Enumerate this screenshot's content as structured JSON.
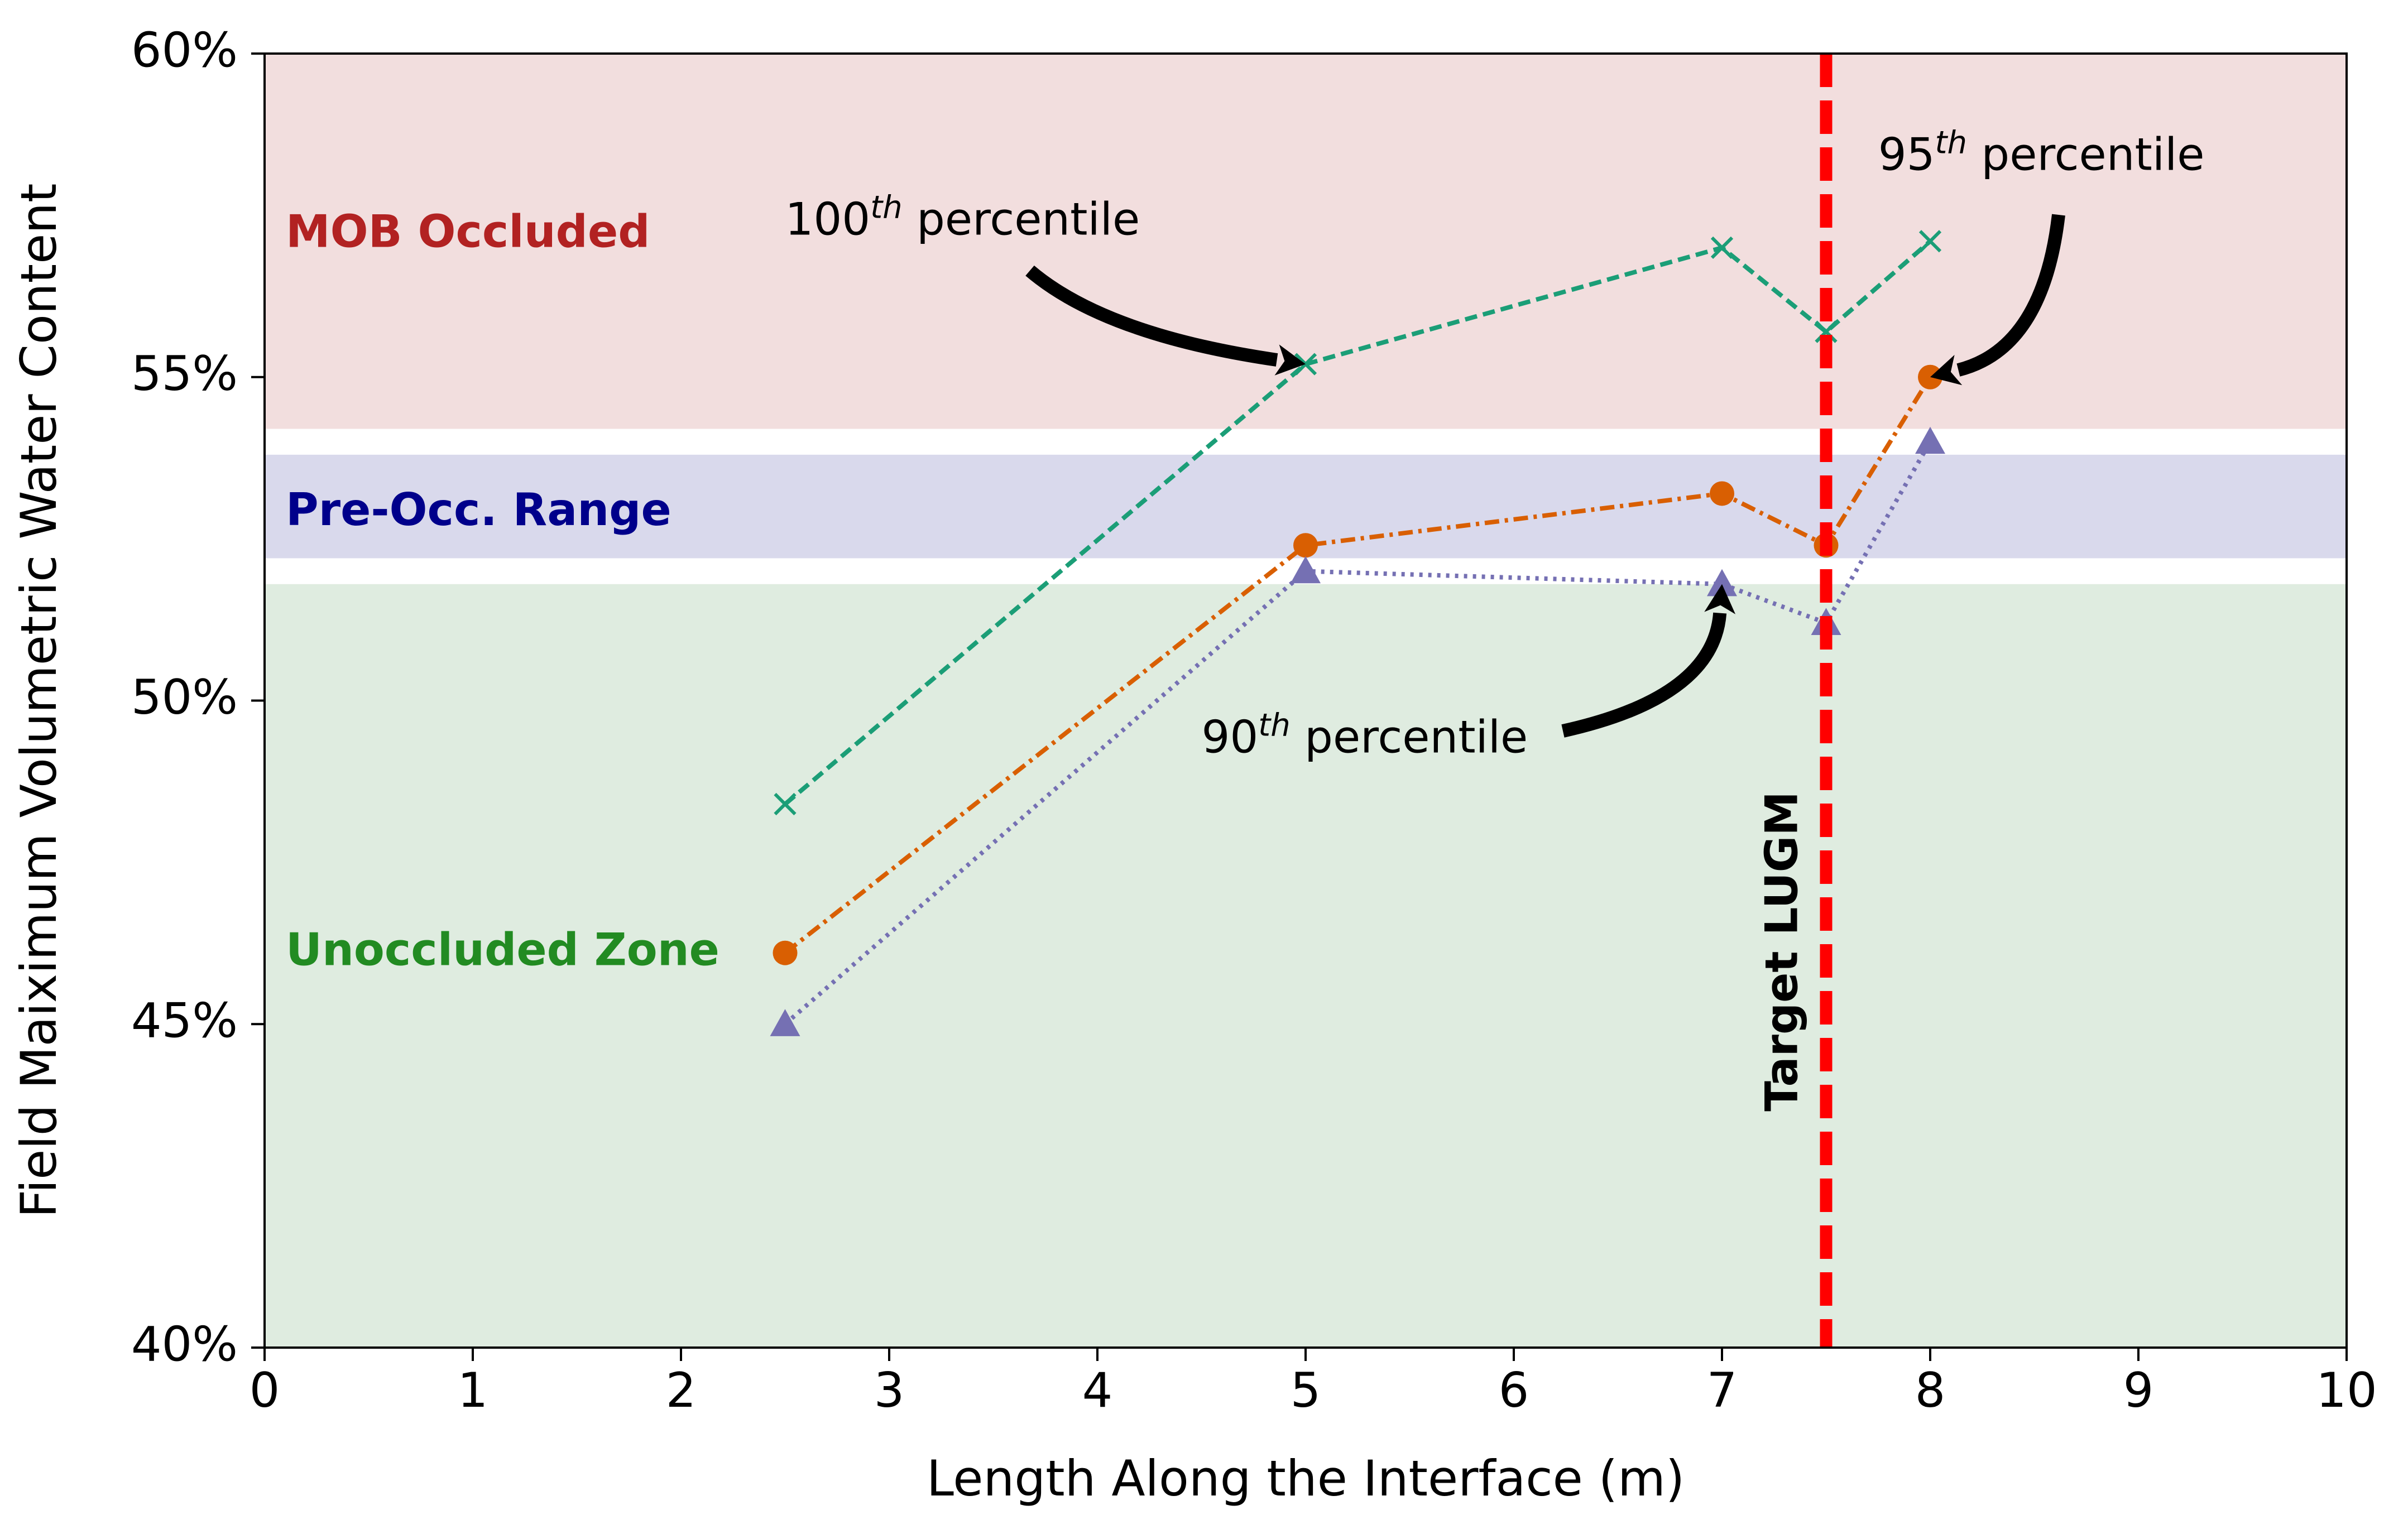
{
  "chart_data": {
    "type": "line",
    "xlabel": "Length Along the Interface (m)",
    "ylabel": "Field Maiximum Volumetric Water Content",
    "xlim": [
      0,
      10
    ],
    "ylim": [
      0.4,
      0.6
    ],
    "x_ticks": [
      0,
      1,
      2,
      3,
      4,
      5,
      6,
      7,
      8,
      9,
      10
    ],
    "x_tick_labels": [
      "0",
      "1",
      "2",
      "3",
      "4",
      "5",
      "6",
      "7",
      "8",
      "9",
      "10"
    ],
    "y_ticks": [
      0.4,
      0.45,
      0.5,
      0.55,
      0.6
    ],
    "y_tick_labels": [
      "40%",
      "45%",
      "50%",
      "55%",
      "60%"
    ],
    "grid": false,
    "legend": "none",
    "x": [
      2.5,
      5,
      7,
      7.5,
      8
    ],
    "series": [
      {
        "values": [
          0.484,
          0.552,
          0.57,
          0.557,
          0.571
        ],
        "color": "#1b9e77",
        "marker": "x",
        "linestyle": "dashed"
      },
      {
        "values": [
          0.461,
          0.524,
          0.532,
          0.524,
          0.55
        ],
        "color": "#d95f02",
        "marker": "circle",
        "linestyle": "dashdot"
      },
      {
        "values": [
          0.45,
          0.52,
          0.518,
          0.512,
          0.54
        ],
        "color": "#7570b3",
        "marker": "triangle",
        "linestyle": "dotted"
      }
    ],
    "bands": [
      {
        "label": "MOB Occluded",
        "from": 0.542,
        "to": 0.6,
        "fill": "#f2dede",
        "text_color": "#b22222",
        "label_y": 0.572
      },
      {
        "label": "Pre-Occ. Range",
        "from": 0.522,
        "to": 0.538,
        "fill": "#d9d9ec",
        "text_color": "#00008b",
        "label_y": 0.529
      },
      {
        "label": "Unoccluded Zone",
        "from": 0.4,
        "to": 0.518,
        "fill": "#dfece0",
        "text_color": "#228b22",
        "label_y": 0.461
      }
    ],
    "vline": {
      "x": 7.5,
      "label": "Target LUGM",
      "color": "#ff0000"
    },
    "annotations": [
      {
        "prefix": "100",
        "sup": "th",
        "suffix": " percentile",
        "text_x": 2.5,
        "text_y": 0.572,
        "target_x": 5,
        "target_y": 0.552
      },
      {
        "prefix": "95",
        "sup": "th",
        "suffix": " percentile",
        "text_x": 7.75,
        "text_y": 0.582,
        "target_x": 8,
        "target_y": 0.55
      },
      {
        "prefix": "90",
        "sup": "th",
        "suffix": " percentile",
        "text_x": 4.5,
        "text_y": 0.492,
        "target_x": 7,
        "target_y": 0.518
      }
    ]
  }
}
